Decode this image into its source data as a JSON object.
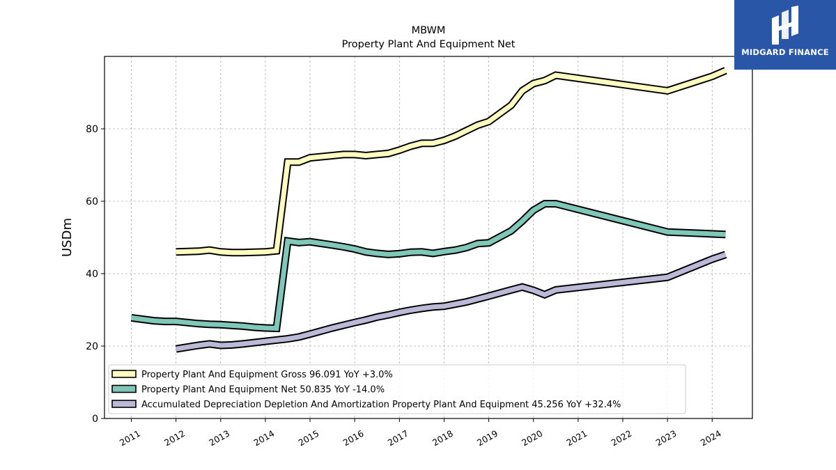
{
  "title": {
    "line1": "MBWM",
    "line2": "Property Plant And Equipment Net"
  },
  "logo": {
    "text": "MIDGARD FINANCE",
    "color": "#2a56a8"
  },
  "chart_data": {
    "type": "line",
    "ylabel": "USDm",
    "xlabel": "",
    "ylim": [
      0,
      100
    ],
    "xlim": [
      2010.4,
      2024.9
    ],
    "yticks": [
      0,
      20,
      40,
      60,
      80
    ],
    "xticks": [
      "2011",
      "2012",
      "2013",
      "2014",
      "2015",
      "2016",
      "2017",
      "2018",
      "2019",
      "2020",
      "2021",
      "2022",
      "2023",
      "2024"
    ],
    "grid": true,
    "legend_position": "lower-left",
    "series": [
      {
        "name": "Property Plant And Equipment Gross",
        "legend": "Property Plant And Equipment Gross  96.091 YoY +3.0%",
        "color": "#ffffc0",
        "points": [
          [
            2012.0,
            46.0
          ],
          [
            2012.5,
            46.2
          ],
          [
            2012.75,
            46.5
          ],
          [
            2013.0,
            46.0
          ],
          [
            2013.25,
            45.8
          ],
          [
            2013.5,
            45.8
          ],
          [
            2013.75,
            45.9
          ],
          [
            2014.0,
            46.0
          ],
          [
            2014.25,
            46.3
          ],
          [
            2014.5,
            70.8
          ],
          [
            2014.75,
            70.8
          ],
          [
            2015.0,
            72.0
          ],
          [
            2015.5,
            72.6
          ],
          [
            2015.75,
            72.9
          ],
          [
            2016.0,
            72.9
          ],
          [
            2016.25,
            72.6
          ],
          [
            2016.5,
            72.9
          ],
          [
            2016.75,
            73.2
          ],
          [
            2017.0,
            74.1
          ],
          [
            2017.25,
            75.2
          ],
          [
            2017.5,
            76.0
          ],
          [
            2017.75,
            76.0
          ],
          [
            2018.0,
            76.8
          ],
          [
            2018.25,
            78.0
          ],
          [
            2018.5,
            79.5
          ],
          [
            2018.75,
            81.0
          ],
          [
            2019.0,
            82.0
          ],
          [
            2019.5,
            86.5
          ],
          [
            2019.75,
            90.5
          ],
          [
            2020.0,
            92.5
          ],
          [
            2020.25,
            93.3
          ],
          [
            2020.5,
            94.8
          ],
          [
            2023.0,
            90.5
          ],
          [
            2024.0,
            94.5
          ],
          [
            2024.3,
            96.091
          ]
        ]
      },
      {
        "name": "Property Plant And Equipment Net",
        "legend": "Property Plant And Equipment Net  50.835 YoY -14.0%",
        "color": "#7fc7b8",
        "points": [
          [
            2011.0,
            27.8
          ],
          [
            2011.5,
            27.0
          ],
          [
            2011.75,
            26.8
          ],
          [
            2012.0,
            26.8
          ],
          [
            2012.5,
            26.2
          ],
          [
            2012.75,
            26.0
          ],
          [
            2013.0,
            25.9
          ],
          [
            2013.5,
            25.5
          ],
          [
            2013.75,
            25.2
          ],
          [
            2014.0,
            25.0
          ],
          [
            2014.25,
            24.9
          ],
          [
            2014.5,
            49.0
          ],
          [
            2014.75,
            48.6
          ],
          [
            2015.0,
            48.8
          ],
          [
            2015.5,
            47.9
          ],
          [
            2015.75,
            47.4
          ],
          [
            2016.0,
            46.8
          ],
          [
            2016.25,
            46.0
          ],
          [
            2016.5,
            45.6
          ],
          [
            2016.75,
            45.3
          ],
          [
            2017.0,
            45.5
          ],
          [
            2017.25,
            45.9
          ],
          [
            2017.5,
            46.0
          ],
          [
            2017.75,
            45.6
          ],
          [
            2018.0,
            46.1
          ],
          [
            2018.25,
            46.5
          ],
          [
            2018.5,
            47.2
          ],
          [
            2018.75,
            48.3
          ],
          [
            2019.0,
            48.5
          ],
          [
            2019.5,
            51.8
          ],
          [
            2019.75,
            54.5
          ],
          [
            2020.0,
            57.5
          ],
          [
            2020.25,
            59.3
          ],
          [
            2020.5,
            59.3
          ],
          [
            2023.0,
            51.5
          ],
          [
            2024.3,
            50.835
          ]
        ]
      },
      {
        "name": "Accumulated Depreciation Depletion And Amortization Property Plant And Equipment",
        "legend": "Accumulated Depreciation Depletion And Amortization Property Plant And Equipment  45.256 YoY +32.4%",
        "color": "#bcb8d8",
        "points": [
          [
            2012.0,
            19.2
          ],
          [
            2012.5,
            20.2
          ],
          [
            2012.75,
            20.6
          ],
          [
            2013.0,
            20.2
          ],
          [
            2013.25,
            20.3
          ],
          [
            2013.5,
            20.6
          ],
          [
            2014.0,
            21.3
          ],
          [
            2014.5,
            22.0
          ],
          [
            2014.75,
            22.5
          ],
          [
            2015.0,
            23.3
          ],
          [
            2015.5,
            25.0
          ],
          [
            2016.0,
            26.5
          ],
          [
            2016.25,
            27.2
          ],
          [
            2016.5,
            28.0
          ],
          [
            2016.75,
            28.6
          ],
          [
            2017.0,
            29.3
          ],
          [
            2017.25,
            29.9
          ],
          [
            2017.5,
            30.4
          ],
          [
            2017.75,
            30.8
          ],
          [
            2018.0,
            31.0
          ],
          [
            2018.25,
            31.6
          ],
          [
            2018.5,
            32.2
          ],
          [
            2018.75,
            33.0
          ],
          [
            2019.0,
            33.8
          ],
          [
            2019.5,
            35.5
          ],
          [
            2019.75,
            36.3
          ],
          [
            2020.0,
            35.4
          ],
          [
            2020.25,
            34.2
          ],
          [
            2020.5,
            35.5
          ],
          [
            2023.0,
            39.0
          ],
          [
            2024.0,
            44.0
          ],
          [
            2024.3,
            45.256
          ]
        ]
      }
    ]
  }
}
